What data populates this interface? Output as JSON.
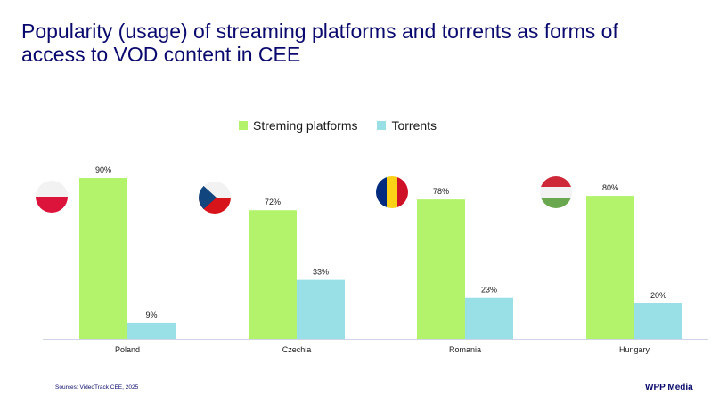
{
  "title": "Popularity (usage) of streaming platforms and torrents as forms of access to VOD content in CEE",
  "legend": {
    "streaming": "Streming platforms",
    "torrents": "Torrents"
  },
  "colors": {
    "title": "#0a0a6e",
    "streaming": "#b3f36b",
    "torrents": "#98e0e6",
    "axis": "#d0d4e8"
  },
  "chart_data": {
    "type": "bar",
    "categories": [
      "Poland",
      "Czechia",
      "Romania",
      "Hungary"
    ],
    "series": [
      {
        "name": "Streming platforms",
        "values": [
          90,
          72,
          78,
          80
        ],
        "labels": [
          "90%",
          "72%",
          "78%",
          "80%"
        ]
      },
      {
        "name": "Torrents",
        "values": [
          9,
          33,
          23,
          20
        ],
        "labels": [
          "9%",
          "33%",
          "23%",
          "20%"
        ]
      }
    ],
    "ylim": [
      0,
      100
    ],
    "legend_position": "top-center",
    "grid": false
  },
  "flags": [
    "poland-flag-icon",
    "czechia-flag-icon",
    "romania-flag-icon",
    "hungary-flag-icon"
  ],
  "footer": {
    "source": "Sources:  VideoTrack CEE, 2025",
    "brand": "WPP Media"
  }
}
